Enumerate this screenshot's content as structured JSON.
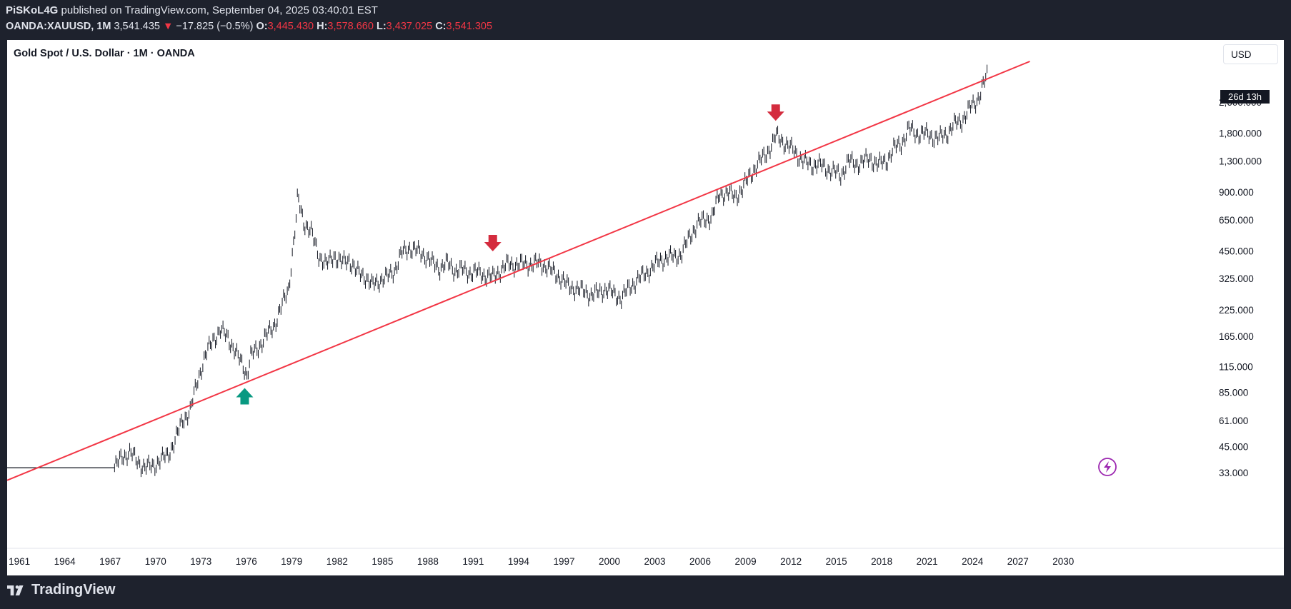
{
  "header": {
    "author": "PiSKoL4G",
    "published": "published on TradingView.com, September 04, 2025 03:40:01 EST",
    "symbol": "OANDA:XAUUSD, 1M",
    "last": "3,541.435",
    "change": "−17.825 (−0.5%)",
    "o_label": "O:",
    "o": "3,445.430",
    "h_label": "H:",
    "h": "3,578.660",
    "l_label": "L:",
    "l": "3,437.025",
    "c_label": "C:",
    "c": "3,541.305"
  },
  "panel": {
    "title": "Gold Spot / U.S. Dollar · 1M · OANDA",
    "currency_button": "USD",
    "countdown": "26d 13h"
  },
  "footer": {
    "brand": "TradingView"
  },
  "colors": {
    "trendline": "#f23645",
    "down_arrow": "#d42c3e",
    "up_arrow": "#089981",
    "candles": "#131722",
    "accent": "#9c27b0"
  },
  "chart_data": {
    "type": "line",
    "title": "Gold Spot / U.S. Dollar · 1M · OANDA",
    "xlabel": "",
    "ylabel": "",
    "y_scale": "log",
    "ylim": [
      27,
      4200
    ],
    "xlim": [
      1960.9,
      2031.5
    ],
    "x_ticks": [
      "1961",
      "1964",
      "1967",
      "1970",
      "1973",
      "1976",
      "1979",
      "1982",
      "1985",
      "1988",
      "1991",
      "1994",
      "1997",
      "2000",
      "2003",
      "2006",
      "2009",
      "2012",
      "2015",
      "2018",
      "2021",
      "2024",
      "2027",
      "2030"
    ],
    "y_ticks": [
      "33.000",
      "45.000",
      "61.000",
      "85.000",
      "115.000",
      "165.000",
      "225.000",
      "325.000",
      "450.000",
      "650.000",
      "900.000",
      "1,300.000",
      "1,800.000",
      "2,600.000"
    ],
    "series": [
      {
        "x": [
          1961,
          1968.0,
          1968.5,
          1969.0,
          1969.5,
          1970.0,
          1970.5,
          1971.0,
          1971.5,
          1972.0,
          1972.5,
          1973.0,
          1973.5,
          1974.0,
          1974.5,
          1975.0,
          1975.5,
          1976.0,
          1976.5,
          1976.75,
          1977.0,
          1977.5,
          1978.0,
          1978.5,
          1979.0,
          1979.5,
          1980.0,
          1980.1,
          1980.5,
          1981.0,
          1981.5,
          1982.0,
          1982.5,
          1983.0,
          1983.5,
          1984.0,
          1984.5,
          1985.0,
          1985.5,
          1986.0,
          1986.5,
          1987.0,
          1987.5,
          1988.0,
          1988.5,
          1989.0,
          1989.5,
          1990.0,
          1990.5,
          1991.0,
          1991.5,
          1992.0,
          1992.5,
          1993.0,
          1993.5,
          1994.0,
          1995.0,
          1996.0,
          1996.5,
          1997.0,
          1997.5,
          1998.0,
          1998.5,
          1999.0,
          1999.5,
          2000.0,
          2000.5,
          2001.0,
          2001.5,
          2002.0,
          2002.5,
          2003.0,
          2003.5,
          2004.0,
          2004.5,
          2005.0,
          2005.5,
          2006.0,
          2006.5,
          2007.0,
          2007.5,
          2008.0,
          2008.5,
          2009.0,
          2009.5,
          2010.0,
          2010.5,
          2011.0,
          2011.5,
          2011.7,
          2012.0,
          2012.5,
          2013.0,
          2013.5,
          2014.0,
          2014.5,
          2015.0,
          2015.5,
          2016.0,
          2016.5,
          2017.0,
          2017.5,
          2018.0,
          2018.5,
          2019.0,
          2019.5,
          2020.0,
          2020.5,
          2021.0,
          2021.5,
          2022.0,
          2022.5,
          2023.0,
          2023.5,
          2024.0,
          2024.5,
          2025.0,
          2025.5,
          2025.67
        ],
        "y": [
          35,
          35,
          40,
          42,
          38,
          35,
          36,
          38,
          41,
          48,
          62,
          68,
          100,
          130,
          160,
          175,
          165,
          135,
          118,
          104,
          130,
          145,
          165,
          185,
          230,
          290,
          650,
          850,
          640,
          560,
          430,
          380,
          430,
          390,
          410,
          350,
          340,
          300,
          320,
          330,
          360,
          440,
          470,
          450,
          430,
          390,
          370,
          390,
          360,
          360,
          350,
          350,
          340,
          330,
          360,
          385,
          385,
          390,
          380,
          350,
          330,
          295,
          290,
          280,
          270,
          275,
          290,
          270,
          260,
          290,
          320,
          340,
          370,
          400,
          420,
          420,
          440,
          530,
          620,
          650,
          680,
          880,
          900,
          850,
          940,
          1100,
          1250,
          1400,
          1600,
          1750,
          1700,
          1550,
          1450,
          1300,
          1250,
          1250,
          1200,
          1150,
          1100,
          1300,
          1250,
          1300,
          1330,
          1250,
          1300,
          1500,
          1600,
          1900,
          1800,
          1800,
          1750,
          1700,
          1800,
          2000,
          2100,
          2400,
          2650,
          3300,
          3541
        ]
      }
    ],
    "annotations": [
      {
        "type": "trendline",
        "from": [
          1960.9,
          30.2
        ],
        "to": [
          2028.5,
          4200
        ]
      },
      {
        "type": "arrow-down",
        "x": 1993.0,
        "y": 430
      },
      {
        "type": "arrow-down",
        "x": 2011.7,
        "y": 2000
      },
      {
        "type": "arrow-up",
        "x": 1976.6,
        "y": 95
      }
    ]
  }
}
